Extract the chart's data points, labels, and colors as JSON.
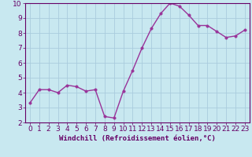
{
  "x": [
    0,
    1,
    2,
    3,
    4,
    5,
    6,
    7,
    8,
    9,
    10,
    11,
    12,
    13,
    14,
    15,
    16,
    17,
    18,
    19,
    20,
    21,
    22,
    23
  ],
  "y": [
    3.3,
    4.2,
    4.2,
    4.0,
    4.5,
    4.4,
    4.1,
    4.2,
    2.4,
    2.3,
    4.1,
    5.5,
    7.0,
    8.3,
    9.3,
    10.0,
    9.8,
    9.2,
    8.5,
    8.5,
    8.1,
    7.7,
    7.8,
    8.2
  ],
  "line_color": "#993399",
  "marker_color": "#993399",
  "bg_color": "#c8e8f0",
  "grid_color": "#aaccdd",
  "xlabel": "Windchill (Refroidissement éolien,°C)",
  "xlim": [
    -0.5,
    23.5
  ],
  "ylim": [
    2,
    10
  ],
  "yticks": [
    2,
    3,
    4,
    5,
    6,
    7,
    8,
    9,
    10
  ],
  "xticks": [
    0,
    1,
    2,
    3,
    4,
    5,
    6,
    7,
    8,
    9,
    10,
    11,
    12,
    13,
    14,
    15,
    16,
    17,
    18,
    19,
    20,
    21,
    22,
    23
  ],
  "xlabel_fontsize": 6.5,
  "tick_fontsize": 6.5,
  "label_color": "#660066",
  "spine_color": "#660066",
  "axis_bg_color": "#c8e8f0",
  "line_width": 1.0,
  "marker_size": 2.5
}
